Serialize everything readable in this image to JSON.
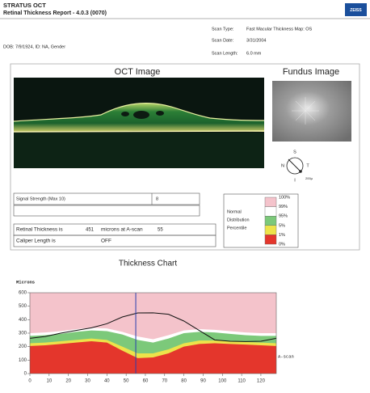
{
  "header": {
    "title": "STRATUS OCT",
    "subtitle": "Retinal Thickness Report - 4.0.3 (0070)",
    "logo": "ZEISS"
  },
  "scan_info": [
    {
      "label": "Scan Type:",
      "value": "Fast Macular Thickness Map: OS"
    },
    {
      "label": "Scan Date:",
      "value": "3/31/2004"
    },
    {
      "label": "Scan Length:",
      "value": "6.0 mm"
    }
  ],
  "patient": "DOB: 7/9/1924, ID: NA, Gender",
  "oct_image": {
    "title": "OCT Image"
  },
  "fundus_image": {
    "title": "Fundus Image"
  },
  "compass": {
    "superior": "S",
    "nasal": "N",
    "temporal": "T",
    "inferior": "I",
    "scale": "200µ"
  },
  "signal_strength": {
    "label": "Signal Strength (Max 10)",
    "value": 8
  },
  "retinal_thickness": {
    "label": "Retinal Thickness is",
    "value": 451,
    "unit": "microns at A-scan",
    "a_scan": 55
  },
  "caliper": {
    "label": "Caliper Length is",
    "value": "OFF"
  },
  "legend": {
    "title": [
      "Normal",
      "Distribution",
      "Percentile"
    ],
    "labels": [
      "100%",
      "99%",
      "95%",
      "5%",
      "1%",
      "0%"
    ],
    "colors": [
      "#f4c3cb",
      "#ffffff",
      "#7cc97a",
      "#ede34a",
      "#e4362c"
    ]
  },
  "thickness_chart": {
    "type": "area-band",
    "title": "Thickness Chart",
    "y_label": "Microns",
    "x_label": "A-scan",
    "x": [
      0,
      8,
      16,
      24,
      32,
      40,
      48,
      56,
      64,
      72,
      80,
      88,
      96,
      104,
      112,
      120,
      128
    ],
    "xlim": [
      0,
      128
    ],
    "ylim": [
      0,
      600
    ],
    "xticks": [
      0,
      10,
      20,
      30,
      40,
      50,
      60,
      70,
      80,
      90,
      100,
      110,
      120
    ],
    "yticks": [
      0,
      100,
      200,
      300,
      400,
      500,
      600
    ],
    "bands": [
      {
        "values": [
          300,
          305,
          315,
          330,
          340,
          335,
          310,
          275,
          255,
          285,
          320,
          330,
          325,
          315,
          305,
          300,
          300
        ]
      },
      {
        "values": [
          280,
          285,
          295,
          310,
          320,
          315,
          290,
          250,
          230,
          260,
          300,
          310,
          305,
          295,
          285,
          280,
          280
        ]
      },
      {
        "values": [
          225,
          230,
          240,
          250,
          260,
          250,
          200,
          150,
          150,
          180,
          225,
          245,
          245,
          240,
          235,
          230,
          225
        ]
      },
      {
        "values": [
          205,
          210,
          220,
          230,
          240,
          230,
          170,
          115,
          120,
          150,
          200,
          220,
          225,
          220,
          215,
          210,
          205
        ]
      }
    ],
    "series": [
      {
        "color": "#111111",
        "values": [
          262,
          275,
          300,
          320,
          340,
          370,
          420,
          450,
          451,
          440,
          390,
          320,
          250,
          240,
          238,
          240,
          262
        ]
      }
    ],
    "cursor_color": "#2a3fb0"
  }
}
